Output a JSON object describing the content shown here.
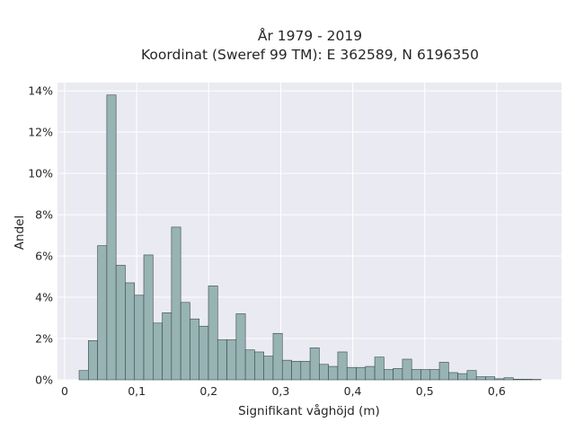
{
  "chart_data": {
    "type": "bar",
    "title": "År 1979 - 2019",
    "subtitle": "Koordinat (Sweref 99 TM): E 362589, N 6196350",
    "xlabel": "Signifikant våghöjd (m)",
    "ylabel": "Andel",
    "xlim": [
      -0.01,
      0.69
    ],
    "ylim": [
      0,
      14.4
    ],
    "x_ticks": [
      0,
      0.1,
      0.2,
      0.3,
      0.4,
      0.5,
      0.6
    ],
    "x_tick_labels": [
      "0",
      "0,1",
      "0,2",
      "0,3",
      "0,4",
      "0,5",
      "0,6"
    ],
    "y_ticks": [
      0,
      2,
      4,
      6,
      8,
      10,
      12,
      14
    ],
    "y_tick_labels": [
      "0%",
      "2%",
      "4%",
      "6%",
      "8%",
      "10%",
      "12%",
      "14%"
    ],
    "grid": true,
    "bin_start": 0.02,
    "bin_width": 0.01283,
    "values": [
      0.45,
      1.9,
      6.5,
      13.8,
      5.55,
      4.7,
      4.1,
      6.05,
      2.75,
      3.25,
      7.4,
      3.75,
      2.95,
      2.6,
      4.55,
      1.95,
      1.95,
      3.2,
      1.45,
      1.35,
      1.15,
      2.25,
      0.95,
      0.9,
      0.9,
      1.55,
      0.75,
      0.65,
      1.35,
      0.6,
      0.6,
      0.65,
      1.1,
      0.5,
      0.55,
      1.0,
      0.5,
      0.5,
      0.5,
      0.85,
      0.35,
      0.3,
      0.45,
      0.15,
      0.15,
      0.05,
      0.1,
      0.03,
      0.03,
      0.02
    ],
    "colors": {
      "bar_fill": "#97b3b3",
      "bar_edge": "#3a4a4a",
      "plot_bg": "#eaeaf2",
      "grid": "#ffffff"
    }
  }
}
